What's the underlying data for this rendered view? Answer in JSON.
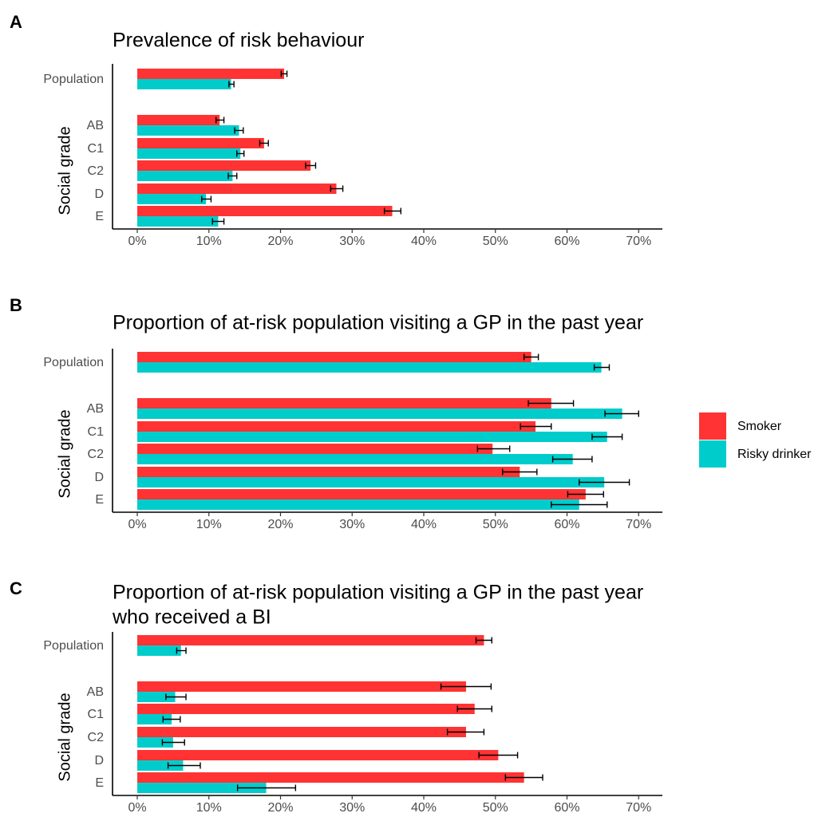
{
  "legend": [
    {
      "label": "Smoker",
      "color": "#FF3333"
    },
    {
      "label": "Risky drinker",
      "color": "#00CCCC"
    }
  ],
  "chart_data": [
    {
      "type": "bar",
      "panel": "A",
      "title": [
        "Prevalence of risk behaviour"
      ],
      "ylabel": "Social grade",
      "categories": [
        "Population",
        "AB",
        "C1",
        "C2",
        "D",
        "E"
      ],
      "xlim": [
        0,
        73
      ],
      "x_ticks": [
        0,
        10,
        20,
        30,
        40,
        50,
        60,
        70
      ],
      "x_tick_labels": [
        "0%",
        "10%",
        "20%",
        "30%",
        "40%",
        "50%",
        "60%",
        "70%"
      ],
      "series": [
        {
          "name": "Smoker",
          "color": "#FF3333",
          "values": [
            20.5,
            11.5,
            17.7,
            24.2,
            27.8,
            35.6
          ],
          "lower": [
            20.1,
            11.0,
            17.1,
            23.5,
            27.0,
            34.5
          ],
          "upper": [
            20.9,
            12.1,
            18.3,
            24.9,
            28.7,
            36.8
          ]
        },
        {
          "name": "Risky drinker",
          "color": "#00CCCC",
          "values": [
            13.1,
            14.2,
            14.4,
            13.3,
            9.6,
            11.3
          ],
          "lower": [
            12.8,
            13.6,
            13.9,
            12.7,
            9.0,
            10.5
          ],
          "upper": [
            13.5,
            14.8,
            14.9,
            13.9,
            10.3,
            12.1
          ]
        }
      ]
    },
    {
      "type": "bar",
      "panel": "B",
      "title": [
        "Proportion of at-risk population visiting a GP in the past year"
      ],
      "ylabel": "Social grade",
      "categories": [
        "Population",
        "AB",
        "C1",
        "C2",
        "D",
        "E"
      ],
      "xlim": [
        0,
        73
      ],
      "x_ticks": [
        0,
        10,
        20,
        30,
        40,
        50,
        60,
        70
      ],
      "x_tick_labels": [
        "0%",
        "10%",
        "20%",
        "30%",
        "40%",
        "50%",
        "60%",
        "70%"
      ],
      "series": [
        {
          "name": "Smoker",
          "color": "#FF3333",
          "values": [
            55.0,
            57.8,
            55.6,
            49.6,
            53.4,
            62.6
          ],
          "lower": [
            54.0,
            54.6,
            53.5,
            47.5,
            51.0,
            60.1
          ],
          "upper": [
            56.0,
            60.9,
            57.8,
            52.0,
            55.8,
            65.1
          ]
        },
        {
          "name": "Risky drinker",
          "color": "#00CCCC",
          "values": [
            64.8,
            67.7,
            65.6,
            60.8,
            65.2,
            61.7
          ],
          "lower": [
            63.8,
            65.3,
            63.5,
            58.0,
            61.7,
            57.8
          ],
          "upper": [
            65.9,
            70.0,
            67.7,
            63.5,
            68.7,
            65.6
          ]
        }
      ]
    },
    {
      "type": "bar",
      "panel": "C",
      "title": [
        "Proportion of at-risk population visiting a GP in the past year",
        "who received a BI"
      ],
      "ylabel": "Social grade",
      "categories": [
        "Population",
        "AB",
        "C1",
        "C2",
        "D",
        "E"
      ],
      "xlim": [
        0,
        73
      ],
      "x_ticks": [
        0,
        10,
        20,
        30,
        40,
        50,
        60,
        70
      ],
      "x_tick_labels": [
        "0%",
        "10%",
        "20%",
        "30%",
        "40%",
        "50%",
        "60%",
        "70%"
      ],
      "series": [
        {
          "name": "Smoker",
          "color": "#FF3333",
          "values": [
            48.4,
            45.9,
            47.1,
            45.9,
            50.4,
            54.0
          ],
          "lower": [
            47.3,
            42.4,
            44.7,
            43.3,
            47.7,
            51.4
          ],
          "upper": [
            49.5,
            49.4,
            49.5,
            48.4,
            53.1,
            56.6
          ]
        },
        {
          "name": "Risky drinker",
          "color": "#00CCCC",
          "values": [
            6.1,
            5.3,
            4.8,
            5.0,
            6.4,
            18.0
          ],
          "lower": [
            5.5,
            4.0,
            3.6,
            3.5,
            4.3,
            14.0
          ],
          "upper": [
            6.8,
            6.8,
            6.0,
            6.6,
            8.8,
            22.1
          ]
        }
      ]
    }
  ]
}
